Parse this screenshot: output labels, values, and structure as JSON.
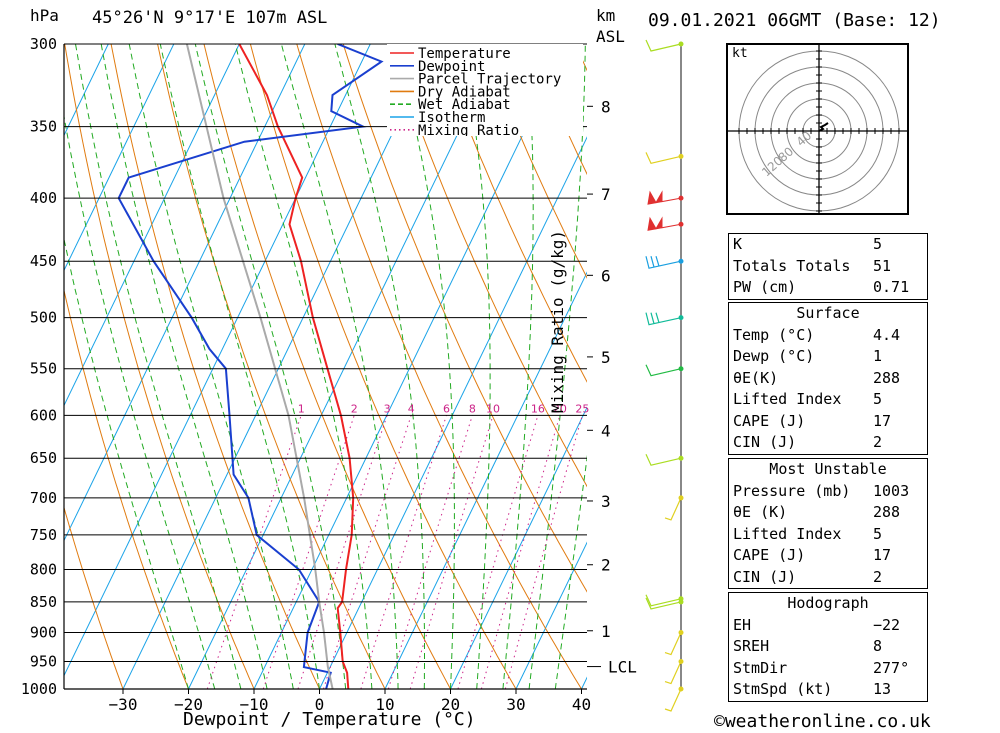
{
  "header": {
    "location": "45°26'N  9°17'E  107m  ASL",
    "datetime": "09.01.2021  06GMT  (Base: 12)",
    "unit_pressure": "hPa",
    "unit_height_km": "km",
    "unit_height_asl": "ASL"
  },
  "chart_data": {
    "type": "line",
    "title": "",
    "xlabel": "Dewpoint / Temperature (°C)",
    "ylabel": "hPa",
    "secondary_ylabel": "Mixing Ratio (g/kg)",
    "xlim": [
      -40,
      40
    ],
    "ylim": [
      1000,
      300
    ],
    "y_scale": "log",
    "grid": true,
    "pressure_levels": [
      300,
      350,
      400,
      450,
      500,
      550,
      600,
      650,
      700,
      750,
      800,
      850,
      900,
      950,
      1000
    ],
    "temperature_ticks": [
      -30,
      -20,
      -10,
      0,
      10,
      20,
      30,
      40
    ],
    "temperature_tick_labels": [
      "−30",
      "−20",
      "−10",
      "0",
      "10",
      "20",
      "30",
      "40"
    ],
    "height_km_ticks": [
      {
        "label": "8",
        "p": 337
      },
      {
        "label": "7",
        "p": 397
      },
      {
        "label": "6",
        "p": 462
      },
      {
        "label": "5",
        "p": 538
      },
      {
        "label": "4",
        "p": 617
      },
      {
        "label": "3",
        "p": 704
      },
      {
        "label": "2",
        "p": 793
      },
      {
        "label": "1",
        "p": 897
      }
    ],
    "lcl": {
      "label": "LCL",
      "p": 959
    },
    "mixing_ratio_labels": [
      "1",
      "2",
      "3",
      "4",
      "6",
      "8",
      "10",
      "16",
      "20",
      "25"
    ],
    "mixing_ratio_values": [
      1,
      2,
      3,
      4,
      6,
      8,
      10,
      16,
      20,
      25
    ],
    "legend": {
      "placement": "top-right",
      "entries": [
        {
          "name": "Temperature",
          "color": "#ee2222",
          "style": "solid"
        },
        {
          "name": "Dewpoint",
          "color": "#1a3fcf",
          "style": "solid"
        },
        {
          "name": "Parcel Trajectory",
          "color": "#aaaaaa",
          "style": "solid"
        },
        {
          "name": "Dry Adiabat",
          "color": "#e07b10",
          "style": "solid"
        },
        {
          "name": "Wet Adiabat",
          "color": "#22aa22",
          "style": "dashed"
        },
        {
          "name": "Isotherm",
          "color": "#1aa3e8",
          "style": "solid"
        },
        {
          "name": "Mixing Ratio",
          "color": "#cc2288",
          "style": "dotted"
        }
      ]
    },
    "series": [
      {
        "name": "Temperature",
        "color": "#ee2222",
        "points": [
          {
            "p": 1000,
            "t": 4.4
          },
          {
            "p": 970,
            "t": 3.0
          },
          {
            "p": 950,
            "t": 1.5
          },
          {
            "p": 900,
            "t": -1.0
          },
          {
            "p": 860,
            "t": -3.2
          },
          {
            "p": 850,
            "t": -3.0
          },
          {
            "p": 800,
            "t": -4.8
          },
          {
            "p": 750,
            "t": -6.5
          },
          {
            "p": 700,
            "t": -9.0
          },
          {
            "p": 650,
            "t": -12.5
          },
          {
            "p": 600,
            "t": -17.0
          },
          {
            "p": 550,
            "t": -22.5
          },
          {
            "p": 500,
            "t": -28.5
          },
          {
            "p": 450,
            "t": -34.5
          },
          {
            "p": 420,
            "t": -39.0
          },
          {
            "p": 400,
            "t": -40.0
          },
          {
            "p": 385,
            "t": -40.5
          },
          {
            "p": 350,
            "t": -48.0
          },
          {
            "p": 330,
            "t": -52.0
          },
          {
            "p": 300,
            "t": -60.0
          }
        ]
      },
      {
        "name": "Dewpoint",
        "color": "#1a3fcf",
        "points": [
          {
            "p": 1000,
            "t": 1.0
          },
          {
            "p": 970,
            "t": 0.5
          },
          {
            "p": 960,
            "t": -4.0
          },
          {
            "p": 900,
            "t": -6.0
          },
          {
            "p": 850,
            "t": -6.5
          },
          {
            "p": 800,
            "t": -12.0
          },
          {
            "p": 750,
            "t": -21.0
          },
          {
            "p": 700,
            "t": -25.0
          },
          {
            "p": 670,
            "t": -29.0
          },
          {
            "p": 600,
            "t": -34.0
          },
          {
            "p": 550,
            "t": -38.0
          },
          {
            "p": 530,
            "t": -42.0
          },
          {
            "p": 500,
            "t": -47.0
          },
          {
            "p": 450,
            "t": -57.0
          },
          {
            "p": 400,
            "t": -67.0
          },
          {
            "p": 385,
            "t": -67.0
          },
          {
            "p": 360,
            "t": -52.0
          },
          {
            "p": 350,
            "t": -35.0
          },
          {
            "p": 340,
            "t": -41.0
          },
          {
            "p": 330,
            "t": -42.0
          },
          {
            "p": 310,
            "t": -37.0
          },
          {
            "p": 300,
            "t": -45.0
          }
        ]
      },
      {
        "name": "Parcel Trajectory",
        "color": "#aaaaaa",
        "points": [
          {
            "p": 1000,
            "t": 2.0
          },
          {
            "p": 959,
            "t": -0.4
          },
          {
            "p": 900,
            "t": -3.5
          },
          {
            "p": 850,
            "t": -6.5
          },
          {
            "p": 800,
            "t": -9.5
          },
          {
            "p": 700,
            "t": -16.5
          },
          {
            "p": 600,
            "t": -25.0
          },
          {
            "p": 500,
            "t": -36.5
          },
          {
            "p": 400,
            "t": -51.0
          },
          {
            "p": 300,
            "t": -68.0
          }
        ]
      }
    ],
    "wind_profile": [
      {
        "p": 1000,
        "color": "#e0d020"
      },
      {
        "p": 950,
        "color": "#e0d020"
      },
      {
        "p": 900,
        "color": "#e0d020"
      },
      {
        "p": 850,
        "color": "#aadd22"
      },
      {
        "p": 845,
        "color": "#aadd22"
      },
      {
        "p": 700,
        "color": "#e0d020"
      },
      {
        "p": 650,
        "color": "#aadd22"
      },
      {
        "p": 550,
        "color": "#22bb44"
      },
      {
        "p": 500,
        "color": "#11bb99"
      },
      {
        "p": 450,
        "color": "#1a9fe0"
      },
      {
        "p": 420,
        "color": "#e03030"
      },
      {
        "p": 400,
        "color": "#e03030"
      },
      {
        "p": 370,
        "color": "#e0d020"
      },
      {
        "p": 300,
        "color": "#aadd22"
      }
    ]
  },
  "hodograph": {
    "unit": "kt",
    "ring_labels": [
      "40",
      "80",
      "120"
    ]
  },
  "indices": {
    "rows": [
      {
        "key": "K",
        "value": "5"
      },
      {
        "key": "Totals Totals",
        "value": "51"
      },
      {
        "key": "PW (cm)",
        "value": "0.71"
      }
    ]
  },
  "surface": {
    "title": "Surface",
    "rows": [
      {
        "key": "Temp (°C)",
        "value": "4.4"
      },
      {
        "key": "Dewp (°C)",
        "value": "1"
      },
      {
        "key": "θE(K)",
        "value": "288"
      },
      {
        "key": "Lifted Index",
        "value": "5"
      },
      {
        "key": "CAPE (J)",
        "value": "17"
      },
      {
        "key": "CIN (J)",
        "value": "2"
      }
    ]
  },
  "most_unstable": {
    "title": "Most Unstable",
    "rows": [
      {
        "key": "Pressure (mb)",
        "value": "1003"
      },
      {
        "key": "θE (K)",
        "value": "288"
      },
      {
        "key": "Lifted Index",
        "value": "5"
      },
      {
        "key": "CAPE (J)",
        "value": "17"
      },
      {
        "key": "CIN (J)",
        "value": "2"
      }
    ]
  },
  "hodograph_table": {
    "title": "Hodograph",
    "rows": [
      {
        "key": "EH",
        "value": "−22"
      },
      {
        "key": "SREH",
        "value": "8"
      },
      {
        "key": "StmDir",
        "value": "277°"
      },
      {
        "key": "StmSpd (kt)",
        "value": "13"
      }
    ]
  },
  "footer": {
    "copyright_symbol": "©",
    "site": "weatheronline.co.uk"
  }
}
